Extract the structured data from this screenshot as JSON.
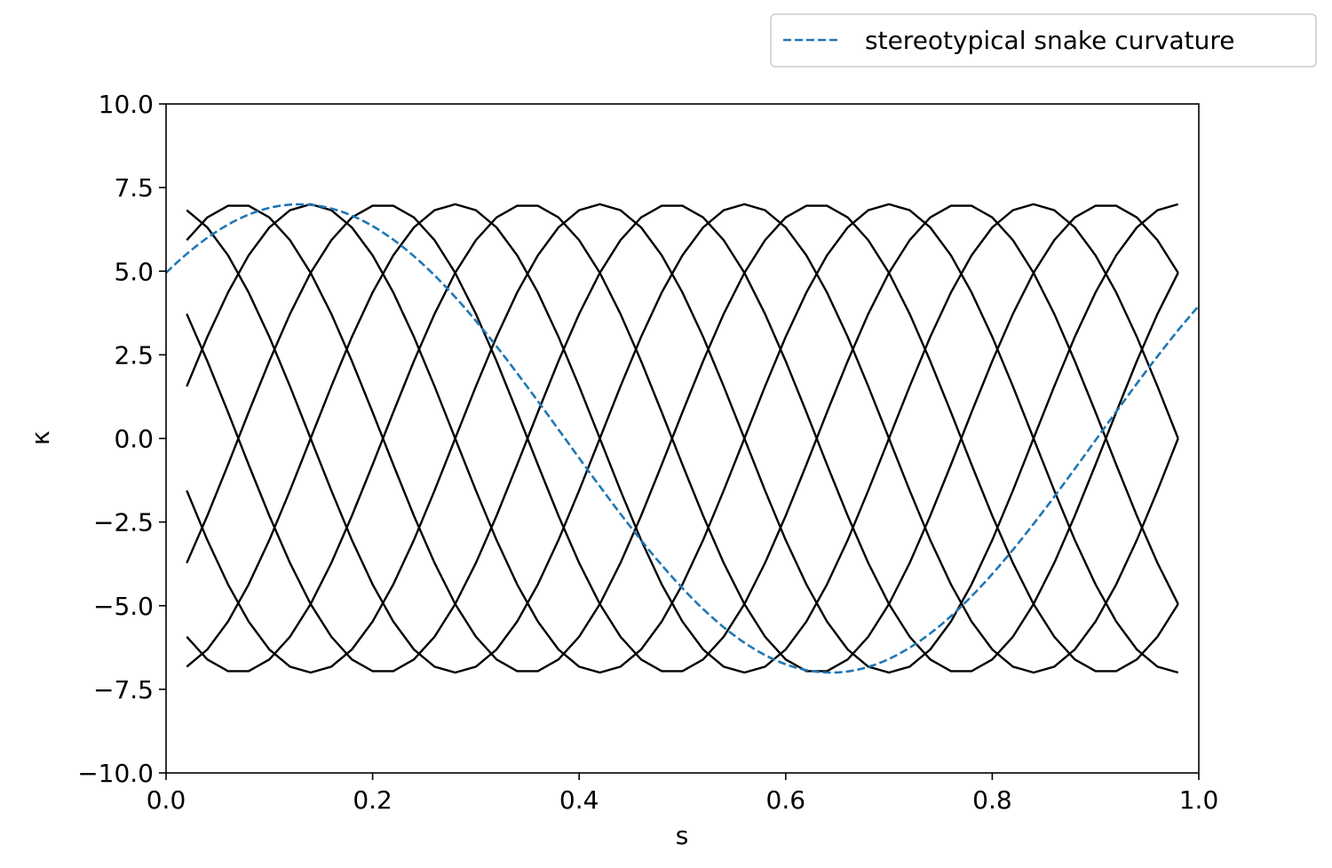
{
  "chart_data": {
    "type": "line",
    "title": "",
    "xlabel": "s",
    "ylabel": "κ",
    "xlim": [
      0.0,
      1.0
    ],
    "ylim": [
      -10.0,
      10.0
    ],
    "xticks": [
      0.0,
      0.2,
      0.4,
      0.6,
      0.8,
      1.0
    ],
    "xtick_labels": [
      "0.0",
      "0.2",
      "0.4",
      "0.6",
      "0.8",
      "1.0"
    ],
    "yticks": [
      10.0,
      7.5,
      5.0,
      2.5,
      0.0,
      -2.5,
      -5.0,
      -7.5,
      -10.0
    ],
    "ytick_labels": [
      "10.0",
      "7.5",
      "5.0",
      "2.5",
      "0.0",
      "−2.5",
      "−5.0",
      "−7.5",
      "−10.0"
    ],
    "grid": false,
    "legend": {
      "placement": "above-top-right",
      "entries": [
        "stereotypical snake curvature"
      ]
    },
    "colors": {
      "curves": "#000000",
      "reference": "#1f77b4"
    },
    "curve_family": {
      "description_visible": false,
      "x_range": [
        0.02,
        0.98
      ],
      "sample_count": 49,
      "series": [
        {
          "amplitude": 7.0,
          "period": 0.56,
          "phase_deg": 90
        },
        {
          "amplitude": 7.0,
          "period": 0.56,
          "phase_deg": 135
        },
        {
          "amplitude": 7.0,
          "period": 0.56,
          "phase_deg": 180
        },
        {
          "amplitude": 7.0,
          "period": 0.56,
          "phase_deg": 225
        },
        {
          "amplitude": 7.0,
          "period": 0.56,
          "phase_deg": 270
        },
        {
          "amplitude": 7.0,
          "period": 0.56,
          "phase_deg": 315
        },
        {
          "amplitude": 7.0,
          "period": 0.56,
          "phase_deg": 0
        },
        {
          "amplitude": 7.0,
          "period": 0.56,
          "phase_deg": 45
        }
      ]
    },
    "reference_series": {
      "name": "stereotypical snake curvature",
      "amplitude": 7.0,
      "period": 1.03,
      "phase_deg": 45,
      "x_range": [
        0.0,
        1.0
      ]
    }
  }
}
